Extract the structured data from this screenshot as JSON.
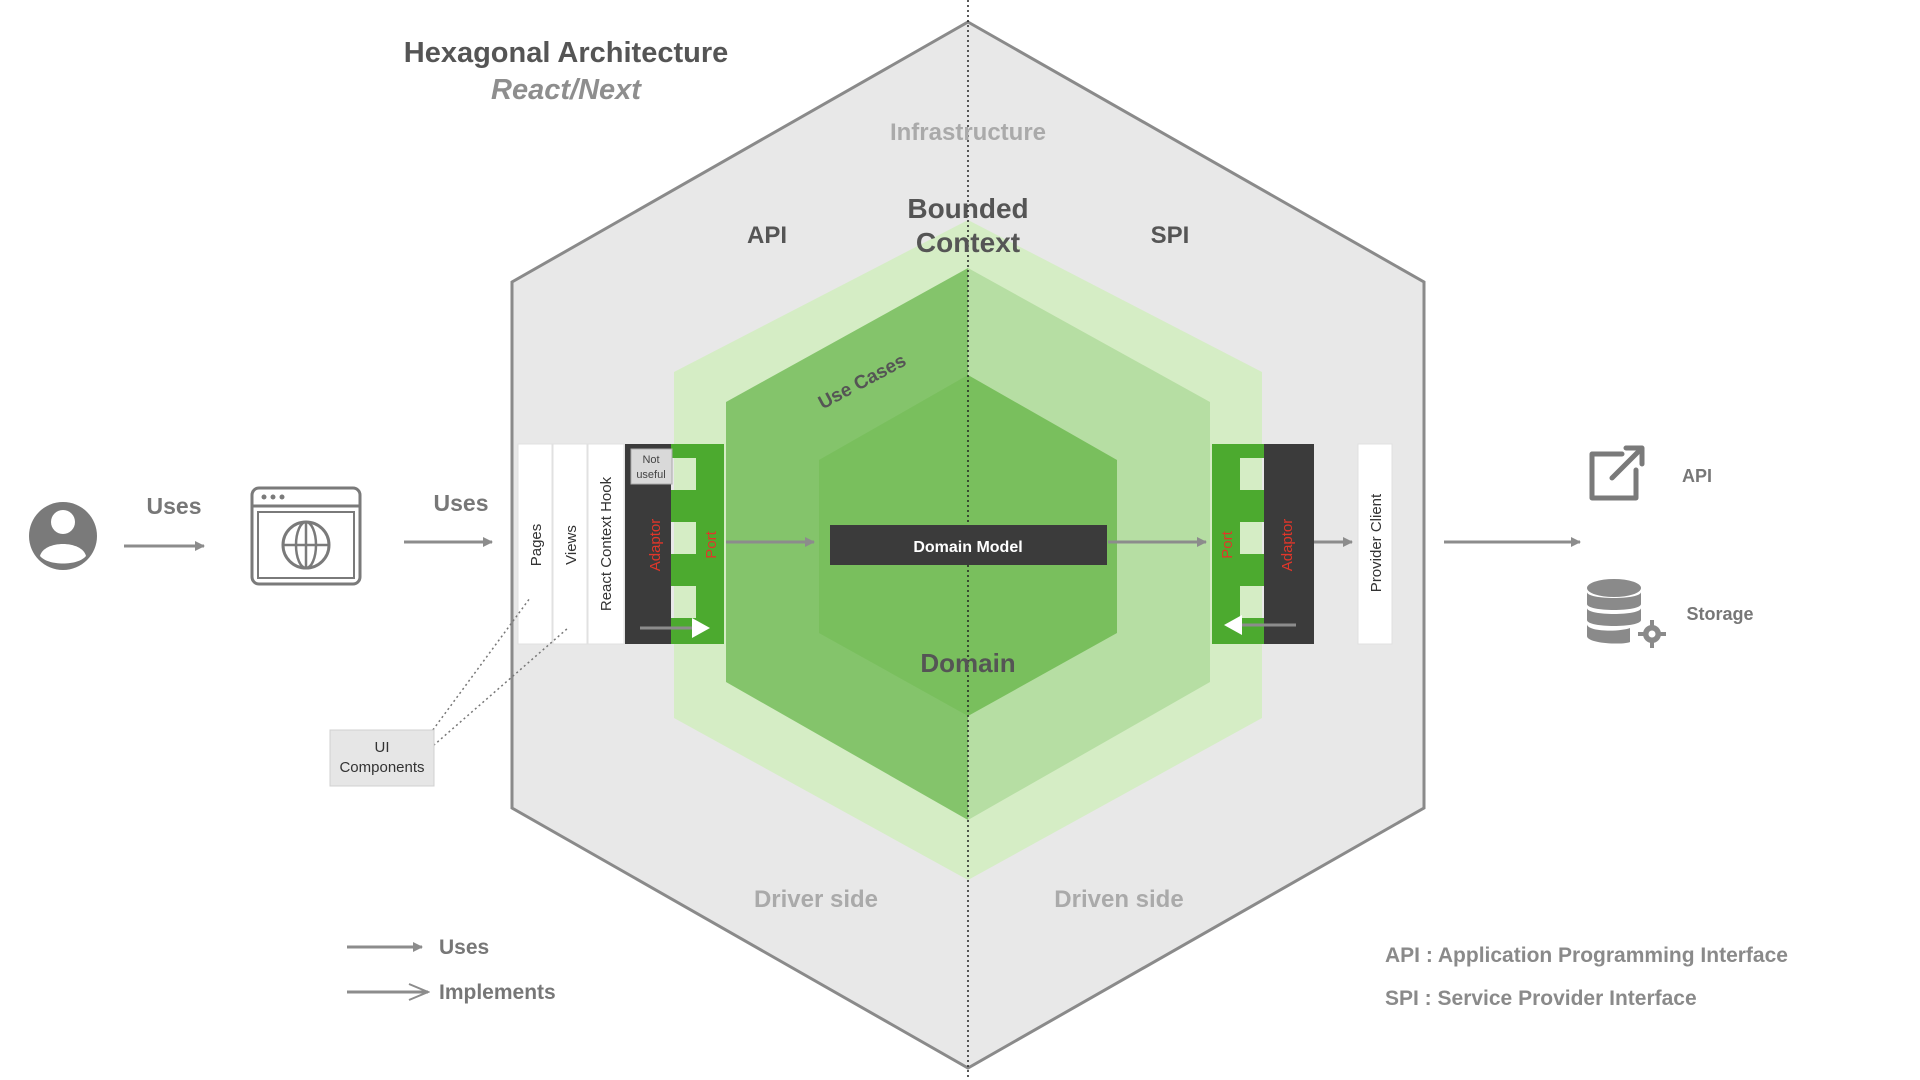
{
  "title": "Hexagonal Architecture",
  "subtitle": "React/Next",
  "layers": {
    "infrastructure": "Infrastructure",
    "bounded_context_line1": "Bounded",
    "bounded_context_line2": "Context",
    "api": "API",
    "spi": "SPI",
    "use_cases": "Use Cases",
    "domain": "Domain",
    "domain_model": "Domain Model",
    "driver_side": "Driver side",
    "driven_side": "Driven side"
  },
  "left_flow": {
    "uses_1": "Uses",
    "uses_2": "Uses",
    "user_icon": "user-icon",
    "browser_icon": "browser-globe-icon"
  },
  "driver_columns": {
    "pages": "Pages",
    "views": "Views",
    "react_context_hook": "React Context Hook",
    "not_useful_line1": "Not",
    "not_useful_line2": "useful",
    "adaptor": "Adaptor",
    "port": "Port"
  },
  "ui_components": {
    "line1": "UI",
    "line2": "Components"
  },
  "driven_columns": {
    "port": "Port",
    "adaptor": "Adaptor",
    "provider_client": "Provider Client"
  },
  "externals": {
    "api_label": "API",
    "api_icon": "external-link-icon",
    "storage_label": "Storage",
    "storage_icon": "database-gear-icon"
  },
  "legend": {
    "uses": "Uses",
    "implements": "Implements"
  },
  "glossary": {
    "api": "API : Application Programming Interface",
    "spi": "SPI : Service Provider Interface"
  },
  "colors": {
    "outer_hex": "#e8e8e8",
    "outer_hex_stroke": "#8a8a8a",
    "bounded_context": "#d5edc5",
    "use_cases_left": "#84c46b",
    "use_cases_right": "#b6dea3",
    "domain": "#79bf5d",
    "port_green": "#4caa2f",
    "adaptor_dark": "#3b3b3b",
    "red_label": "#e0362a",
    "gray_text": "#555555",
    "light_gray_text": "#a9a9a9"
  }
}
